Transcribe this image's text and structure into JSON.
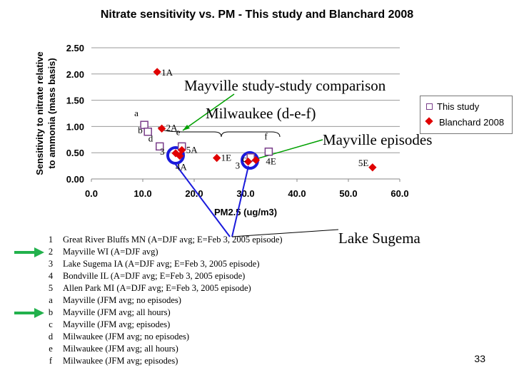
{
  "chart_data": {
    "type": "scatter",
    "title": "Nitrate sensitivity vs. PM - This study and Blanchard 2008",
    "xlabel": "PM2.5 (ug/m3)",
    "ylabel": "Sensitivity to nitrate relative to ammonia (mass basis)",
    "xlim": [
      0,
      60
    ],
    "ylim": [
      0,
      2.5
    ],
    "xticks": [
      "0.0",
      "10.0",
      "20.0",
      "30.0",
      "40.0",
      "50.0",
      "60.0"
    ],
    "yticks": [
      "0.00",
      "0.50",
      "1.00",
      "1.50",
      "2.00",
      "2.50"
    ],
    "grid": "horizontal",
    "legend_position": "right",
    "series": [
      {
        "name": "This study",
        "color": "#7a3e8a",
        "marker": "square",
        "points": [
          {
            "label": "a",
            "x": 10.3,
            "y": 1.03
          },
          {
            "label": "b",
            "x": 11.0,
            "y": 0.9
          },
          {
            "label": "d",
            "x": 13.3,
            "y": 0.62
          },
          {
            "label": "e",
            "x": 17.6,
            "y": 0.62
          },
          {
            "label": "f",
            "x": 34.5,
            "y": 0.52
          },
          {
            "label": "c",
            "x": 31.0,
            "y": 0.41
          }
        ]
      },
      {
        "name": "Blanchard 2008",
        "color": "#e00000",
        "marker": "diamond",
        "points": [
          {
            "label": "1A",
            "x": 12.8,
            "y": 2.04
          },
          {
            "label": "2A",
            "x": 13.7,
            "y": 0.96
          },
          {
            "label": "5A",
            "x": 17.6,
            "y": 0.55
          },
          {
            "label": "3",
            "x": 16.4,
            "y": 0.49
          },
          {
            "label": "4A",
            "x": 17.2,
            "y": 0.44
          },
          {
            "label": "1E",
            "x": 24.4,
            "y": 0.4
          },
          {
            "label": "3",
            "x": 30.5,
            "y": 0.33
          },
          {
            "label": "4E",
            "x": 32.0,
            "y": 0.36
          },
          {
            "label": "5E",
            "x": 54.7,
            "y": 0.22
          }
        ]
      }
    ]
  },
  "annotations": {
    "mayville_comparison": "Mayville study-study comparison",
    "milwaukee": "Milwaukee (d-e-f)",
    "mayville_episodes": "Mayville episodes",
    "lake_sugema": "Lake Sugema"
  },
  "notes": [
    {
      "id": "1",
      "text": "Great River Bluffs MN (A=DJF avg; E=Feb 3, 2005 episode)",
      "highlight": false
    },
    {
      "id": "2",
      "text": "Mayville WI (A=DJF avg)",
      "highlight": true
    },
    {
      "id": "3",
      "text": "Lake Sugema IA (A=DJF avg; E=Feb 3, 2005 episode)",
      "highlight": false
    },
    {
      "id": "4",
      "text": "Bondville IL (A=DJF avg; E=Feb 3, 2005 episode)",
      "highlight": false
    },
    {
      "id": "5",
      "text": "Allen Park MI (A=DJF avg; E=Feb 3, 2005 episode)",
      "highlight": false
    },
    {
      "id": "a",
      "text": "Mayville (JFM avg; no episodes)",
      "highlight": false
    },
    {
      "id": "b",
      "text": "Mayville (JFM avg; all hours)",
      "highlight": true
    },
    {
      "id": "c",
      "text": "Mayville (JFM avg; episodes)",
      "highlight": false
    },
    {
      "id": "d",
      "text": "Milwaukee (JFM avg; no episodes)",
      "highlight": false
    },
    {
      "id": "e",
      "text": "Milwaukee (JFM avg; all hours)",
      "highlight": false
    },
    {
      "id": "f",
      "text": "Milwaukee (JFM avg; episodes)",
      "highlight": false
    }
  ],
  "page_number": "33",
  "colors": {
    "arrow_green": "#22b14c",
    "circle_blue": "#1a1adc",
    "line_blue": "#1a1adc",
    "line_green": "#00a000"
  }
}
